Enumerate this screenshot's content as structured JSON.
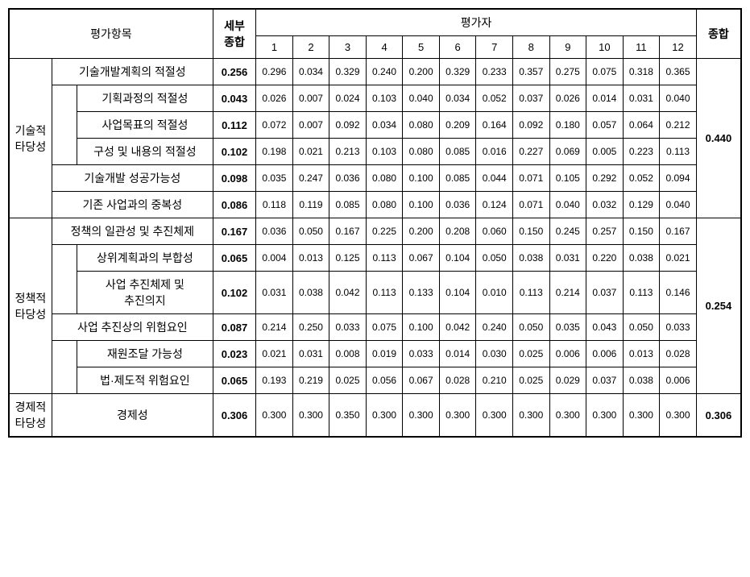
{
  "headers": {
    "item": "평가항목",
    "subTotal": "세부\n종합",
    "evaluator": "평가자",
    "evals": [
      "1",
      "2",
      "3",
      "4",
      "5",
      "6",
      "7",
      "8",
      "9",
      "10",
      "11",
      "12"
    ],
    "total": "종합"
  },
  "sections": [
    {
      "label": "기술적\n타당성",
      "total": "0.440",
      "rows": [
        {
          "indent": 0,
          "label": "기술개발계획의 적절성",
          "sub": "0.256",
          "vals": [
            "0.296",
            "0.034",
            "0.329",
            "0.240",
            "0.200",
            "0.329",
            "0.233",
            "0.357",
            "0.275",
            "0.075",
            "0.318",
            "0.365"
          ]
        },
        {
          "indent": 1,
          "label": "기획과정의 적절성",
          "sub": "0.043",
          "vals": [
            "0.026",
            "0.007",
            "0.024",
            "0.103",
            "0.040",
            "0.034",
            "0.052",
            "0.037",
            "0.026",
            "0.014",
            "0.031",
            "0.040"
          ]
        },
        {
          "indent": 1,
          "label": "사업목표의 적절성",
          "sub": "0.112",
          "vals": [
            "0.072",
            "0.007",
            "0.092",
            "0.034",
            "0.080",
            "0.209",
            "0.164",
            "0.092",
            "0.180",
            "0.057",
            "0.064",
            "0.212"
          ]
        },
        {
          "indent": 1,
          "label": "구성 및 내용의 적절성",
          "sub": "0.102",
          "vals": [
            "0.198",
            "0.021",
            "0.213",
            "0.103",
            "0.080",
            "0.085",
            "0.016",
            "0.227",
            "0.069",
            "0.005",
            "0.223",
            "0.113"
          ]
        },
        {
          "indent": 0,
          "label": "기술개발 성공가능성",
          "sub": "0.098",
          "vals": [
            "0.035",
            "0.247",
            "0.036",
            "0.080",
            "0.100",
            "0.085",
            "0.044",
            "0.071",
            "0.105",
            "0.292",
            "0.052",
            "0.094"
          ]
        },
        {
          "indent": 0,
          "label": "기존 사업과의 중복성",
          "sub": "0.086",
          "vals": [
            "0.118",
            "0.119",
            "0.085",
            "0.080",
            "0.100",
            "0.036",
            "0.124",
            "0.071",
            "0.040",
            "0.032",
            "0.129",
            "0.040"
          ]
        }
      ]
    },
    {
      "label": "정책적\n타당성",
      "total": "0.254",
      "rows": [
        {
          "indent": 0,
          "label": "정책의 일관성 및 추진체제",
          "sub": "0.167",
          "vals": [
            "0.036",
            "0.050",
            "0.167",
            "0.225",
            "0.200",
            "0.208",
            "0.060",
            "0.150",
            "0.245",
            "0.257",
            "0.150",
            "0.167"
          ]
        },
        {
          "indent": 1,
          "label": "상위계획과의 부합성",
          "sub": "0.065",
          "vals": [
            "0.004",
            "0.013",
            "0.125",
            "0.113",
            "0.067",
            "0.104",
            "0.050",
            "0.038",
            "0.031",
            "0.220",
            "0.038",
            "0.021"
          ]
        },
        {
          "indent": 1,
          "label": "사업 추진체제 및\n추진의지",
          "sub": "0.102",
          "vals": [
            "0.031",
            "0.038",
            "0.042",
            "0.113",
            "0.133",
            "0.104",
            "0.010",
            "0.113",
            "0.214",
            "0.037",
            "0.113",
            "0.146"
          ]
        },
        {
          "indent": 0,
          "label": "사업 추진상의 위험요인",
          "sub": "0.087",
          "vals": [
            "0.214",
            "0.250",
            "0.033",
            "0.075",
            "0.100",
            "0.042",
            "0.240",
            "0.050",
            "0.035",
            "0.043",
            "0.050",
            "0.033"
          ]
        },
        {
          "indent": 1,
          "label": "재원조달 가능성",
          "sub": "0.023",
          "vals": [
            "0.021",
            "0.031",
            "0.008",
            "0.019",
            "0.033",
            "0.014",
            "0.030",
            "0.025",
            "0.006",
            "0.006",
            "0.013",
            "0.028"
          ]
        },
        {
          "indent": 1,
          "label": "법·제도적 위험요인",
          "sub": "0.065",
          "vals": [
            "0.193",
            "0.219",
            "0.025",
            "0.056",
            "0.067",
            "0.028",
            "0.210",
            "0.025",
            "0.029",
            "0.037",
            "0.038",
            "0.006"
          ]
        }
      ]
    },
    {
      "label": "경제적\n타당성",
      "total": "0.306",
      "rows": [
        {
          "indent": -1,
          "label": "경제성",
          "sub": "0.306",
          "vals": [
            "0.300",
            "0.300",
            "0.350",
            "0.300",
            "0.300",
            "0.300",
            "0.300",
            "0.300",
            "0.300",
            "0.300",
            "0.300",
            "0.300"
          ]
        }
      ]
    }
  ]
}
